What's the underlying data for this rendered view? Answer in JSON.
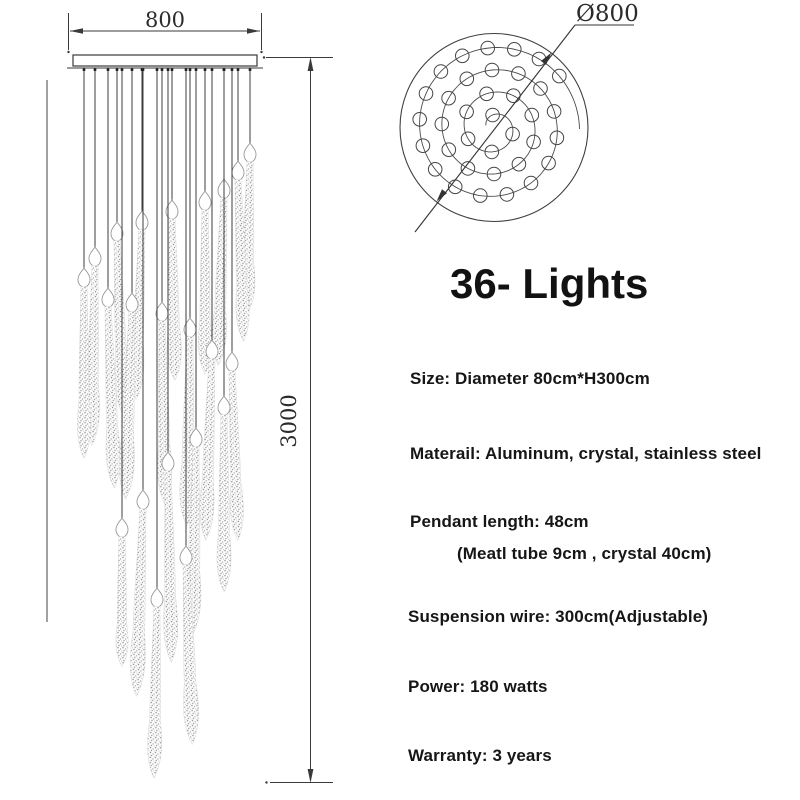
{
  "title": "36- Lights",
  "front_view": {
    "width_label": "800",
    "height_label": "3000"
  },
  "top_view": {
    "diameter_label": "Ø800",
    "lights_count": 36
  },
  "specs": [
    "Size: Diameter 80cm*H300cm",
    "Materail: Aluminum, crystal, stainless steel",
    "Pendant length: 48cm",
    "(Meatl tube 9cm , crystal 40cm)",
    "Suspension wire: 300cm(Adjustable)",
    "Power: 180 watts",
    "Warranty: 3 years"
  ],
  "colors": {
    "line": "#3a3a3a",
    "text": "#161616",
    "crystal_speckle": "#8f8f8f",
    "bulb_outline": "#9a9a9a",
    "background": "#ffffff"
  }
}
